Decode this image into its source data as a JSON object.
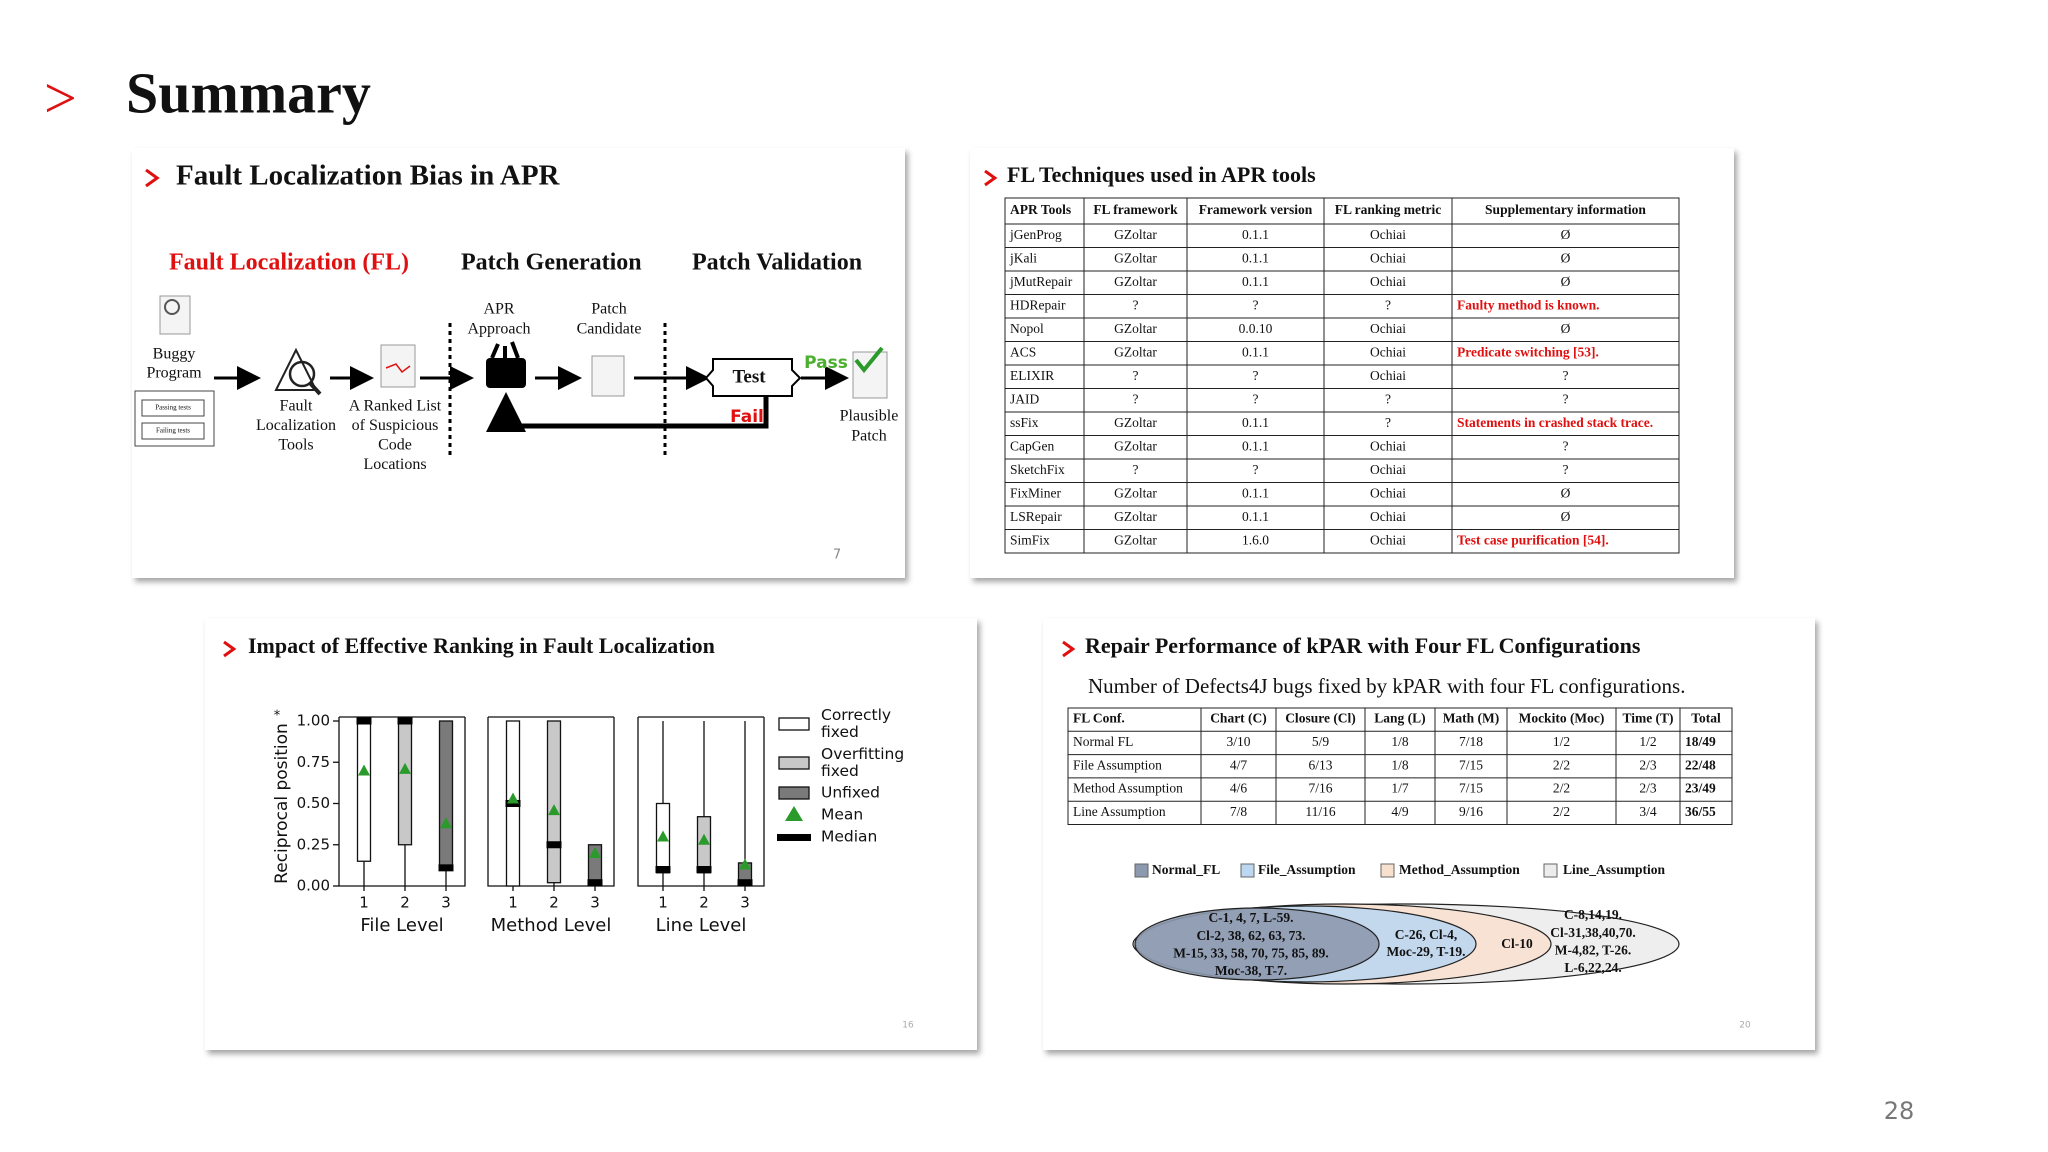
{
  "title": "Summary",
  "page_number": "28",
  "slide1": {
    "title": "Fault Localization Bias in APR",
    "stages": [
      "Fault Localization (FL)",
      "Patch Generation",
      "Patch Validation"
    ],
    "buggy_program": [
      "Buggy",
      "Program"
    ],
    "passing_tests": "Passing tests",
    "failing_tests": "Failing tests",
    "fl_tools": [
      "Fault",
      "Localization",
      "Tools"
    ],
    "ranked_list": [
      "A Ranked List",
      "of Suspicious",
      "Code",
      "Locations"
    ],
    "apr_approach": [
      "APR",
      "Approach"
    ],
    "patch_candidate": [
      "Patch",
      "Candidate"
    ],
    "test": "Test",
    "pass": "Pass",
    "fail": "Fail",
    "plausible_patch": [
      "Plausible",
      "Patch"
    ],
    "page_number": "7"
  },
  "slide2": {
    "title": "FL Techniques used in APR tools",
    "table": {
      "header": [
        "APR Tools",
        "FL framework",
        "Framework version",
        "FL ranking metric",
        "Supplementary information"
      ],
      "rows": [
        [
          "jGenProg",
          "GZoltar",
          "0.1.1",
          "Ochiai",
          "Ø"
        ],
        [
          "jKali",
          "GZoltar",
          "0.1.1",
          "Ochiai",
          "Ø"
        ],
        [
          "jMutRepair",
          "GZoltar",
          "0.1.1",
          "Ochiai",
          "Ø"
        ],
        [
          "HDRepair",
          "?",
          "?",
          "?",
          {
            "text": "Faulty method is known.",
            "color": "#e01010"
          }
        ],
        [
          "Nopol",
          "GZoltar",
          "0.0.10",
          "Ochiai",
          "Ø"
        ],
        [
          "ACS",
          "GZoltar",
          "0.1.1",
          "Ochiai",
          {
            "text": "Predicate switching [53].",
            "color": "#e01010"
          }
        ],
        [
          "ELIXIR",
          "?",
          "?",
          "Ochiai",
          "?"
        ],
        [
          "JAID",
          "?",
          "?",
          "?",
          "?"
        ],
        [
          "ssFix",
          "GZoltar",
          "0.1.1",
          "?",
          {
            "text": "Statements in crashed stack trace.",
            "color": "#e01010"
          }
        ],
        [
          "CapGen",
          "GZoltar",
          "0.1.1",
          "Ochiai",
          "?"
        ],
        [
          "SketchFix",
          "?",
          "?",
          "Ochiai",
          "?"
        ],
        [
          "FixMiner",
          "GZoltar",
          "0.1.1",
          "Ochiai",
          "Ø"
        ],
        [
          "LSRepair",
          "GZoltar",
          "0.1.1",
          "Ochiai",
          "Ø"
        ],
        [
          "SimFix",
          "GZoltar",
          "1.6.0",
          "Ochiai",
          {
            "text": "Test case purification [54].",
            "color": "#e01010"
          }
        ]
      ]
    }
  },
  "slide3": {
    "title": "Impact of Effective Ranking in Fault Localization",
    "page_number": "16"
  },
  "chart_data": {
    "type": "box",
    "ylabel": "Reciprocal position",
    "ylabel_note": "*",
    "ylim": [
      0,
      1
    ],
    "yticks": [
      {
        "value": 0,
        "label": "0.00"
      },
      {
        "value": 0.25,
        "label": "0.25"
      },
      {
        "value": 0.5,
        "label": "0.50"
      },
      {
        "value": 0.75,
        "label": "0.75"
      },
      {
        "value": 1,
        "label": "1.00"
      }
    ],
    "groups": [
      "File Level",
      "Method Level",
      "Line Level"
    ],
    "box_labels": [
      "1",
      "2",
      "3"
    ],
    "series": [
      {
        "name": "Correctly fixed",
        "color": "#ffffff",
        "boxes": [
          {
            "min": 0,
            "q1": 0.15,
            "median": 1,
            "q3": 1,
            "max": 1,
            "mean": 0.7
          },
          {
            "min": 0,
            "q1": 0,
            "median": 0.5,
            "q3": 1,
            "max": 1,
            "mean": 0.53
          },
          {
            "min": 0,
            "q1": 0.08,
            "median": 0.1,
            "q3": 0.5,
            "max": 1,
            "mean": 0.3
          }
        ]
      },
      {
        "name": "Overfitting fixed",
        "color": "#c8c8c8",
        "boxes": [
          {
            "min": 0,
            "q1": 0.25,
            "median": 1,
            "q3": 1,
            "max": 1,
            "mean": 0.71
          },
          {
            "min": 0,
            "q1": 0.02,
            "median": 0.25,
            "q3": 1,
            "max": 1,
            "mean": 0.46
          },
          {
            "min": 0,
            "q1": 0.08,
            "median": 0.1,
            "q3": 0.42,
            "max": 1,
            "mean": 0.28
          }
        ]
      },
      {
        "name": "Unfixed",
        "color": "#7a7a7a",
        "boxes": [
          {
            "min": 0,
            "q1": 0.1,
            "median": 0.11,
            "q3": 1,
            "max": 1,
            "mean": 0.38
          },
          {
            "min": 0,
            "q1": 0.02,
            "median": 0.02,
            "q3": 0.25,
            "max": 0.25,
            "mean": 0.2
          },
          {
            "min": 0,
            "q1": 0.02,
            "median": 0.02,
            "q3": 0.14,
            "max": 1,
            "mean": 0.13
          }
        ]
      }
    ],
    "mean_label": "Mean",
    "mean_color": "#2a9a2a",
    "median_label": "Median",
    "median_color": "#000000"
  },
  "slide4": {
    "title": "Repair Performance of kPAR with Four FL Configurations",
    "subtitle": "Number of Defects4J bugs fixed by kPAR with four FL configurations.",
    "table": {
      "header": [
        "FL Conf.",
        "Chart (C)",
        "Closure (Cl)",
        "Lang (L)",
        "Math (M)",
        "Mockito (Moc)",
        "Time (T)",
        "Total"
      ],
      "rows": [
        [
          "Normal FL",
          "3/10",
          "5/9",
          "1/8",
          "7/18",
          "1/2",
          "1/2",
          "18/49"
        ],
        [
          "File Assumption",
          "4/7",
          "6/13",
          "1/8",
          "7/15",
          "2/2",
          "2/3",
          "22/48"
        ],
        [
          "Method Assumption",
          "4/6",
          "7/16",
          "1/7",
          "7/15",
          "2/2",
          "2/3",
          "23/49"
        ],
        [
          "Line Assumption",
          "7/8",
          "11/16",
          "4/9",
          "9/16",
          "2/2",
          "3/4",
          "36/55"
        ]
      ]
    },
    "legend": [
      {
        "name": "Normal_FL",
        "color": "#8d99ae"
      },
      {
        "name": "File_Assumption",
        "color": "#bcd7f0"
      },
      {
        "name": "Method_Assumption",
        "color": "#f8e0cf"
      },
      {
        "name": "Line_Assumption",
        "color": "#ececec"
      }
    ],
    "venn": [
      [
        "C-1, 4, 7, L-59.",
        "Cl-2, 38, 62, 63, 73.",
        "M-15, 33, 58, 70, 75, 85, 89.",
        "Moc-38, T-7."
      ],
      [
        "C-26, Cl-4,",
        "Moc-29, T-19."
      ],
      [
        "Cl-10"
      ],
      [
        "C-8,14,19.",
        "Cl-31,38,40,70.",
        "M-4,82, T-26.",
        "L-6,22,24."
      ]
    ],
    "page_number": "20"
  }
}
